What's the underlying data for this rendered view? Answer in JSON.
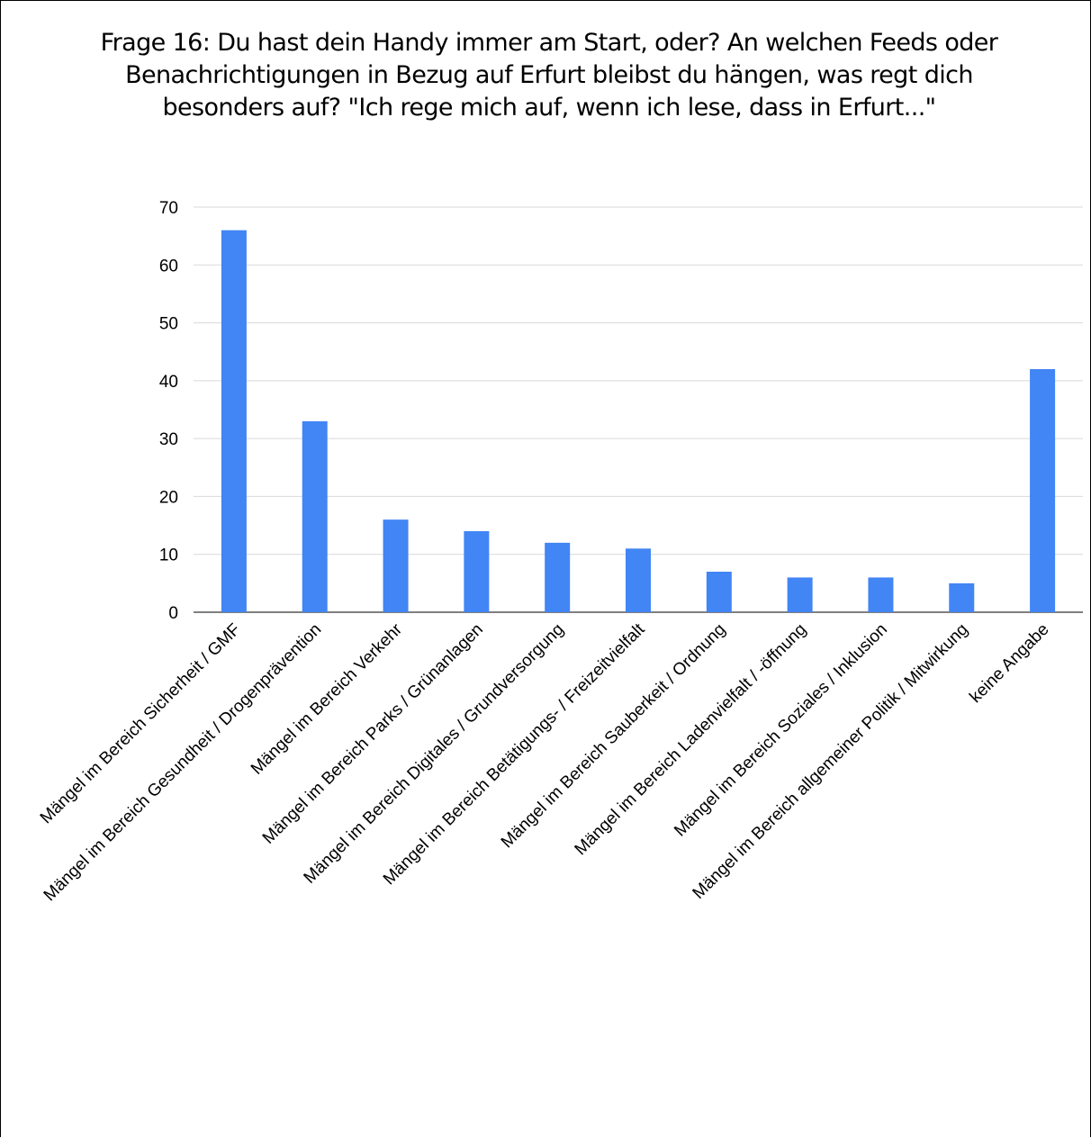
{
  "chart_data": {
    "type": "bar",
    "title": "Frage 16: Du hast dein Handy immer am Start, oder? An welchen Feeds oder Benachrichtigungen in Bezug auf Erfurt bleibst du hängen, was regt dich besonders auf? \"Ich rege mich auf, wenn ich lese, dass in Erfurt...\"",
    "xlabel": "",
    "ylabel": "",
    "categories": [
      "Mängel im Bereich Sicherheit / GMF",
      "Mängel im Bereich Gesundheit / Drogenprävention",
      "Mängel im Bereich Verkehr",
      "Mängel im Bereich Parks / Grünanlagen",
      "Mängel im Bereich Digitales / Grundversorgung",
      "Mängel im Bereich Betätigungs- / Freizeitvielfalt",
      "Mängel im Bereich Sauberkeit / Ordnung",
      "Mängel im Bereich Ladenvielfalt / -öffnung",
      "Mängel im Bereich Soziales / Inklusion",
      "Mängel im Bereich allgemeiner Politik / Mitwirkung",
      "keine Angabe"
    ],
    "values": [
      66,
      33,
      16,
      14,
      12,
      11,
      7,
      6,
      6,
      5,
      42
    ],
    "ylim": [
      0,
      70
    ],
    "yticks": [
      0,
      10,
      20,
      30,
      40,
      50,
      60,
      70
    ],
    "grid": true,
    "bar_color": "#4285f4",
    "grid_color": "#d9d9d9"
  }
}
